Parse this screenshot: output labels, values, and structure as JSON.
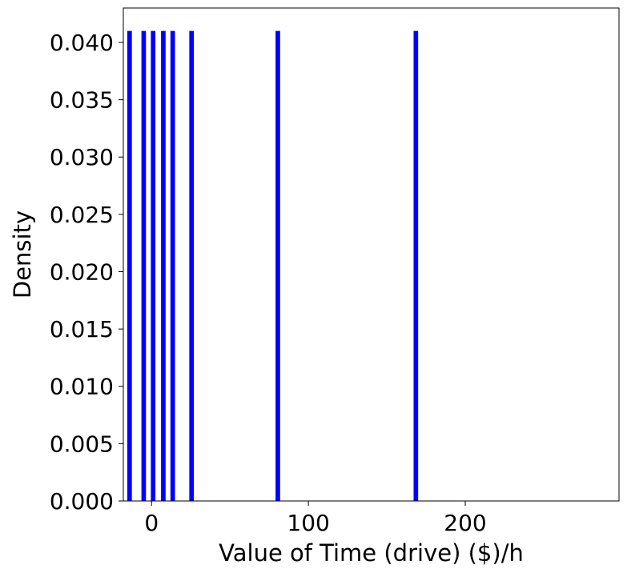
{
  "chart_data": {
    "type": "bar",
    "title": "",
    "xlabel": "Value of Time (drive) ($)/h",
    "ylabel": "Density",
    "xlim": [
      -18,
      298
    ],
    "ylim": [
      0,
      0.043
    ],
    "xticks": [
      {
        "value": 0,
        "label": "0"
      },
      {
        "value": 100,
        "label": "100"
      },
      {
        "value": 200,
        "label": "200"
      }
    ],
    "yticks": [
      {
        "value": 0.0,
        "label": "0.000"
      },
      {
        "value": 0.005,
        "label": "0.005"
      },
      {
        "value": 0.01,
        "label": "0.010"
      },
      {
        "value": 0.015,
        "label": "0.015"
      },
      {
        "value": 0.02,
        "label": "0.020"
      },
      {
        "value": 0.025,
        "label": "0.025"
      },
      {
        "value": 0.03,
        "label": "0.030"
      },
      {
        "value": 0.035,
        "label": "0.035"
      },
      {
        "value": 0.04,
        "label": "0.040"
      }
    ],
    "bar_width": 2.9,
    "bars": [
      {
        "x": -14,
        "y": 0.041
      },
      {
        "x": -5,
        "y": 0.041
      },
      {
        "x": 1,
        "y": 0.041
      },
      {
        "x": 7.5,
        "y": 0.041
      },
      {
        "x": 13.5,
        "y": 0.041
      },
      {
        "x": 25.5,
        "y": 0.041
      },
      {
        "x": 80.5,
        "y": 0.041
      },
      {
        "x": 168.5,
        "y": 0.041
      }
    ],
    "bar_color": "#0000ff",
    "grid": false,
    "legend": "none"
  }
}
